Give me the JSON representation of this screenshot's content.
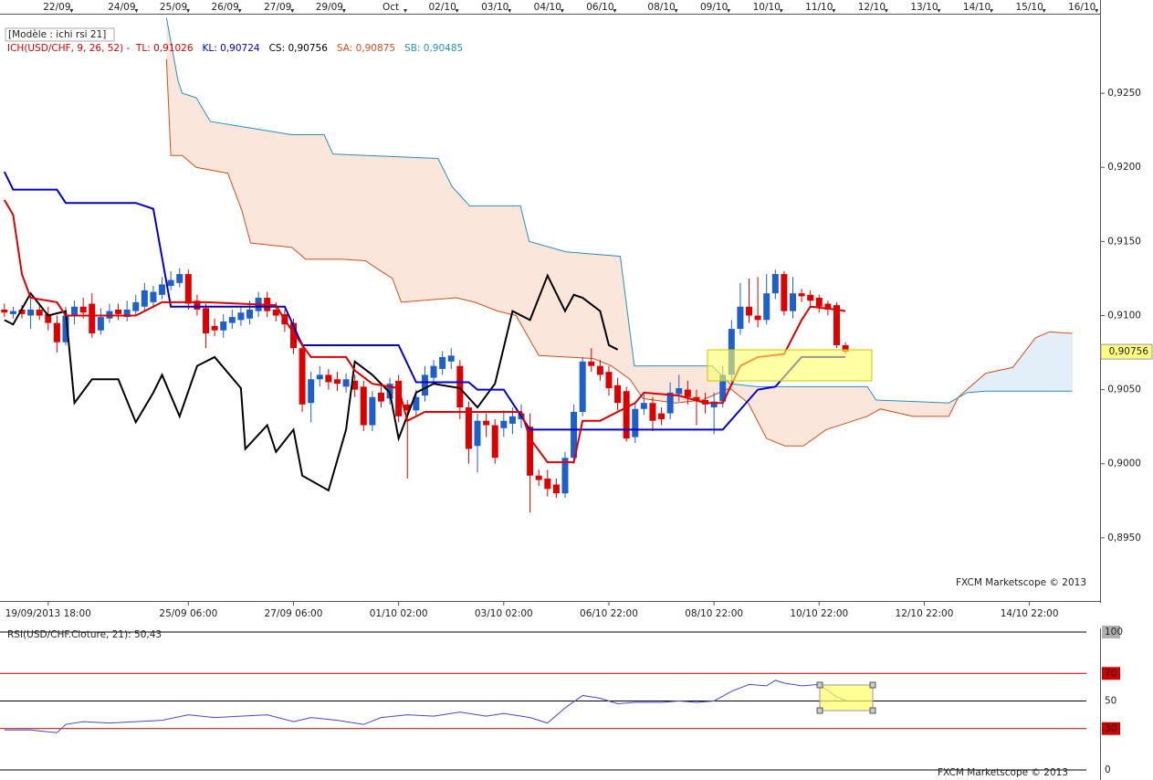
{
  "chart_data": {
    "type": "candlestick",
    "model_label": "[Modèle : ichi rsi 21]",
    "indicator_legend": [
      {
        "text": "ICH(USD/CHF, 9, 26, 52) -  TL: 0,91026",
        "color": "#dd0000"
      },
      {
        "text": "KL: 0,90724",
        "color": "#0000cc"
      },
      {
        "text": "CS: 0,90756",
        "color": "#000000"
      },
      {
        "text": "SA: 0,90875",
        "color": "#d05020"
      },
      {
        "text": "SB: 0,90485",
        "color": "#2a8fb8"
      }
    ],
    "watermark": "FXCM Marketscope © 2013",
    "xlim": [
      -0.5,
      123.5
    ],
    "ylim": [
      0.89154,
      0.93037
    ],
    "yticks": [
      {
        "value": 0.895,
        "label": "0,8950"
      },
      {
        "value": 0.9,
        "label": "0,9000"
      },
      {
        "value": 0.905,
        "label": "0,9050"
      },
      {
        "value": 0.91,
        "label": "0,9100"
      },
      {
        "value": 0.915,
        "label": "0,9150"
      },
      {
        "value": 0.92,
        "label": "0,9200"
      },
      {
        "value": 0.925,
        "label": "0,9250"
      }
    ],
    "xticks": [
      {
        "value": 5,
        "label": "19/09/2013 18:00"
      },
      {
        "value": 21,
        "label": "25/09 06:00"
      },
      {
        "value": 33,
        "label": "27/09 06:00"
      },
      {
        "value": 45,
        "label": "01/10 02:00"
      },
      {
        "value": 57,
        "label": "03/10 02:00"
      },
      {
        "value": 69,
        "label": "06/10 22:00"
      },
      {
        "value": 81,
        "label": "08/10 22:00"
      },
      {
        "value": 93,
        "label": "10/10 22:00"
      },
      {
        "value": 105,
        "label": "12/10 22:00"
      },
      {
        "value": 117,
        "label": "14/10 22:00"
      }
    ],
    "x2ticks": [
      {
        "value": 6,
        "label": "22/09"
      },
      {
        "value": 13.4,
        "label": "24/09"
      },
      {
        "value": 19.3,
        "label": "25/09"
      },
      {
        "value": 25.2,
        "label": "26/09"
      },
      {
        "value": 31.2,
        "label": "27/09"
      },
      {
        "value": 37.1,
        "label": "29/09"
      },
      {
        "value": 44.1,
        "label": "Oct"
      },
      {
        "value": 50,
        "label": "02/10"
      },
      {
        "value": 56,
        "label": "03/10"
      },
      {
        "value": 62,
        "label": "04/10"
      },
      {
        "value": 68,
        "label": "06/10"
      },
      {
        "value": 75,
        "label": "08/10"
      },
      {
        "value": 81,
        "label": "09/10"
      },
      {
        "value": 87,
        "label": "10/10"
      },
      {
        "value": 93,
        "label": "11/10"
      },
      {
        "value": 99,
        "label": "12/10"
      },
      {
        "value": 105,
        "label": "13/10"
      },
      {
        "value": 111,
        "label": "14/10"
      },
      {
        "value": 117,
        "label": "15/10"
      },
      {
        "value": 123,
        "label": "16/10"
      }
    ],
    "up_color": "#1f5fc8",
    "down_color": "#dd0000",
    "open": [
      0.9104,
      0.9101,
      0.9104,
      0.91,
      0.9104,
      0.9101,
      0.9095,
      0.9082,
      0.91,
      0.9106,
      0.9108,
      0.909,
      0.9098,
      0.9104,
      0.9099,
      0.9103,
      0.9106,
      0.9109,
      0.9114,
      0.912,
      0.9122,
      0.9128,
      0.911,
      0.9105,
      0.9093,
      0.909,
      0.9095,
      0.9097,
      0.9098,
      0.9103,
      0.9112,
      0.9104,
      0.9101,
      0.9095,
      0.9078,
      0.9041,
      0.9057,
      0.906,
      0.9057,
      0.9052,
      0.9056,
      0.9052,
      0.9026,
      0.9048,
      0.9044,
      0.9056,
      0.904,
      0.9036,
      0.9046,
      0.9058,
      0.9064,
      0.9069,
      0.9066,
      0.9038,
      0.9012,
      0.9029,
      0.9026,
      0.9024,
      0.9027,
      0.903,
      0.9025,
      0.8992,
      0.899,
      0.8986,
      0.898,
      0.9004,
      0.9035,
      0.9069,
      0.9066,
      0.9062,
      0.9053,
      0.9049,
      0.9018,
      0.9037,
      0.9041,
      0.9034,
      0.9034,
      0.9047,
      0.905,
      0.9045,
      0.9043,
      0.9038,
      0.9042,
      0.906,
      0.9091,
      0.9106,
      0.91,
      0.9097,
      0.9115,
      0.9128,
      0.9103,
      0.9115,
      0.9114,
      0.9112,
      0.9108,
      0.9107,
      0.908
    ],
    "high": [
      0.9108,
      0.9106,
      0.9107,
      0.9112,
      0.9108,
      0.9106,
      0.91,
      0.9106,
      0.911,
      0.9112,
      0.9115,
      0.9105,
      0.9108,
      0.9108,
      0.911,
      0.9114,
      0.9122,
      0.912,
      0.9126,
      0.913,
      0.9132,
      0.9131,
      0.9114,
      0.9108,
      0.9098,
      0.9101,
      0.9104,
      0.9106,
      0.911,
      0.9116,
      0.9116,
      0.9109,
      0.9104,
      0.9098,
      0.9082,
      0.9062,
      0.9066,
      0.9064,
      0.9062,
      0.9061,
      0.906,
      0.9056,
      0.9049,
      0.9052,
      0.9058,
      0.906,
      0.9043,
      0.905,
      0.9066,
      0.907,
      0.9076,
      0.9078,
      0.907,
      0.9042,
      0.9034,
      0.9034,
      0.903,
      0.9036,
      0.9038,
      0.904,
      0.9034,
      0.8996,
      0.8996,
      0.899,
      0.9008,
      0.904,
      0.9072,
      0.9078,
      0.907,
      0.9066,
      0.9058,
      0.9052,
      0.9041,
      0.9048,
      0.9045,
      0.9038,
      0.9055,
      0.906,
      0.9056,
      0.905,
      0.9048,
      0.9048,
      0.9066,
      0.9097,
      0.9122,
      0.9125,
      0.9126,
      0.9128,
      0.9131,
      0.913,
      0.9126,
      0.9118,
      0.9117,
      0.9114,
      0.911,
      0.9109,
      0.9082
    ],
    "low": [
      0.9099,
      0.9098,
      0.9098,
      0.9091,
      0.9097,
      0.909,
      0.9075,
      0.908,
      0.9094,
      0.9098,
      0.9085,
      0.9087,
      0.9095,
      0.9097,
      0.9096,
      0.91,
      0.9103,
      0.9105,
      0.9111,
      0.9117,
      0.9119,
      0.9104,
      0.91,
      0.9078,
      0.9086,
      0.9085,
      0.9091,
      0.9093,
      0.9094,
      0.9099,
      0.9099,
      0.9096,
      0.9089,
      0.9074,
      0.9035,
      0.9028,
      0.9052,
      0.905,
      0.9049,
      0.9048,
      0.9045,
      0.9022,
      0.9022,
      0.9038,
      0.904,
      0.9028,
      0.899,
      0.9032,
      0.9042,
      0.9054,
      0.906,
      0.9064,
      0.903,
      0.9,
      0.8994,
      0.9018,
      0.9,
      0.9018,
      0.902,
      0.9024,
      0.8967,
      0.8985,
      0.8978,
      0.8977,
      0.8977,
      0.9,
      0.9032,
      0.9062,
      0.9056,
      0.9046,
      0.9036,
      0.9015,
      0.9014,
      0.9033,
      0.9022,
      0.9026,
      0.903,
      0.9042,
      0.904,
      0.9026,
      0.9034,
      0.902,
      0.9038,
      0.9055,
      0.9087,
      0.9095,
      0.9092,
      0.9094,
      0.9111,
      0.91,
      0.9098,
      0.9109,
      0.9106,
      0.9102,
      0.91,
      0.9078,
      0.9074
    ],
    "close": [
      0.9102,
      0.9103,
      0.9101,
      0.9104,
      0.91,
      0.9095,
      0.9082,
      0.91,
      0.9106,
      0.9102,
      0.9088,
      0.9099,
      0.9103,
      0.9101,
      0.9104,
      0.9109,
      0.9117,
      0.9116,
      0.9121,
      0.9124,
      0.9128,
      0.9108,
      0.9104,
      0.9088,
      0.909,
      0.9096,
      0.9099,
      0.9102,
      0.9104,
      0.9112,
      0.9103,
      0.91,
      0.9094,
      0.9078,
      0.904,
      0.9057,
      0.906,
      0.9055,
      0.9054,
      0.9057,
      0.905,
      0.9026,
      0.9045,
      0.9042,
      0.9054,
      0.9032,
      0.9036,
      0.9045,
      0.906,
      0.9066,
      0.9072,
      0.9073,
      0.9038,
      0.901,
      0.9029,
      0.9026,
      0.9004,
      0.9029,
      0.9032,
      0.9034,
      0.8992,
      0.8989,
      0.8983,
      0.898,
      0.9004,
      0.9035,
      0.9069,
      0.9066,
      0.906,
      0.9051,
      0.9041,
      0.9017,
      0.9037,
      0.9041,
      0.9029,
      0.903,
      0.9048,
      0.9051,
      0.9045,
      0.9043,
      0.904,
      0.9042,
      0.906,
      0.9091,
      0.9106,
      0.91,
      0.9097,
      0.9115,
      0.9128,
      0.9103,
      0.9115,
      0.9113,
      0.911,
      0.9106,
      0.9104,
      0.908,
      0.90756
    ],
    "last_price": {
      "value": 0.90756,
      "label": "0,90756"
    },
    "cloud": {
      "fill_colors": [
        "#fbe6dc",
        "#e2eff8"
      ],
      "a": {
        "color": "#d05020",
        "x": [
          18.5,
          19,
          20.3,
          21.9,
          25.5,
          27.1,
          28.1,
          32.8,
          34.4,
          38.6,
          41.2,
          42.2,
          44.3,
          45.3,
          51.6,
          53.7,
          56.3,
          58.4,
          61,
          64.1,
          67.2,
          69.3,
          71.4,
          72.9,
          76.6,
          79.7,
          82.8,
          84.9,
          87,
          89.1,
          91.2,
          93.8,
          96.4,
          98.5,
          100,
          103.7,
          107.8,
          108.9,
          112,
          115.1,
          117.7,
          119.3,
          121.9
        ],
        "values": [
          0.9273,
          0.9208,
          0.9208,
          0.92,
          0.9196,
          0.9171,
          0.9149,
          0.9146,
          0.9138,
          0.9138,
          0.9137,
          0.9133,
          0.9125,
          0.9109,
          0.9112,
          0.9109,
          0.9103,
          0.91,
          0.9073,
          0.9072,
          0.9071,
          0.9066,
          0.9057,
          0.9044,
          0.9041,
          0.9043,
          0.9051,
          0.9041,
          0.9017,
          0.9012,
          0.9012,
          0.9023,
          0.9028,
          0.9032,
          0.9037,
          0.9032,
          0.9032,
          0.9045,
          0.9061,
          0.9065,
          0.9085,
          0.9089,
          0.9088
        ]
      },
      "b": {
        "color": "#2a8fb8",
        "x": [
          18.5,
          19.8,
          20.3,
          21.9,
          23.5,
          32.8,
          36.5,
          37.5,
          49.5,
          51.1,
          53.1,
          58.9,
          59.9,
          64.1,
          70.3,
          71.9,
          80.8,
          82.8,
          86,
          98.5,
          99.5,
          107.8,
          109.9,
          112,
          121.9
        ],
        "values": [
          0.9301,
          0.9259,
          0.925,
          0.9247,
          0.9231,
          0.9222,
          0.9222,
          0.9209,
          0.9206,
          0.9187,
          0.9174,
          0.9174,
          0.915,
          0.9143,
          0.914,
          0.9066,
          0.9066,
          0.9054,
          0.9052,
          0.9052,
          0.9043,
          0.9041,
          0.9048,
          0.9049,
          0.9049
        ]
      }
    },
    "lines": [
      {
        "color": "#000000",
        "x": [
          0,
          1,
          3,
          5,
          7,
          8,
          10,
          13,
          15,
          17,
          18,
          20,
          22,
          24,
          27,
          27.5,
          30,
          31,
          33,
          34,
          37,
          39,
          40,
          42,
          44,
          45,
          47,
          49,
          52,
          54,
          56,
          58,
          60,
          62,
          64,
          65,
          66,
          68,
          69,
          70
        ],
        "values": [
          0.9097,
          0.9094,
          0.9115,
          0.91,
          0.9103,
          0.9041,
          0.9057,
          0.9057,
          0.9028,
          0.9048,
          0.906,
          0.9032,
          0.9066,
          0.9072,
          0.9051,
          0.901,
          0.9026,
          0.9008,
          0.9023,
          0.8992,
          0.8982,
          0.9023,
          0.9069,
          0.906,
          0.9048,
          0.9017,
          0.9048,
          0.9054,
          0.9051,
          0.9038,
          0.9054,
          0.9103,
          0.9097,
          0.9127,
          0.9103,
          0.9114,
          0.9112,
          0.9103,
          0.908,
          0.9077
        ]
      },
      {
        "color": "#0000cc",
        "x": [
          0,
          1,
          6,
          7,
          15,
          17,
          19,
          32,
          34,
          45,
          47,
          53,
          54,
          57,
          58,
          60,
          66,
          82,
          86,
          88,
          91,
          96
        ],
        "values": [
          0.9197,
          0.9185,
          0.9185,
          0.9176,
          0.9176,
          0.9172,
          0.9106,
          0.9106,
          0.908,
          0.908,
          0.9055,
          0.9055,
          0.905,
          0.905,
          0.9041,
          0.9023,
          0.9023,
          0.9023,
          0.905,
          0.9052,
          0.9072,
          0.9072
        ]
      },
      {
        "color": "#dd0000",
        "x": [
          0,
          1,
          2,
          3,
          6,
          7,
          15,
          18,
          20,
          23,
          31,
          32,
          34,
          35,
          39,
          40,
          42,
          45,
          46,
          48,
          59,
          60,
          62,
          65,
          66,
          68,
          72,
          73,
          77,
          80,
          82,
          84,
          86,
          89,
          91,
          92,
          95,
          96
        ],
        "values": [
          0.9178,
          0.9168,
          0.9128,
          0.9112,
          0.9109,
          0.91,
          0.91,
          0.9109,
          0.9109,
          0.9109,
          0.9107,
          0.9097,
          0.908,
          0.9072,
          0.9072,
          0.9063,
          0.9054,
          0.9051,
          0.9029,
          0.9035,
          0.9035,
          0.9017,
          0.9001,
          0.9001,
          0.9029,
          0.9029,
          0.9041,
          0.9048,
          0.9046,
          0.9041,
          0.9041,
          0.9066,
          0.9072,
          0.9074,
          0.9097,
          0.9106,
          0.9104,
          0.9103
        ]
      }
    ],
    "rsi": {
      "label": "RSI(USD/CHF.Cloture, 21): 50,43",
      "color": "#4848c8",
      "ylim": [
        0,
        100
      ],
      "yticks": [
        0,
        30,
        50,
        70,
        100
      ],
      "ytick_colors": [
        "#000000",
        "#cc0000",
        "#000000",
        "#cc0000",
        "#000000"
      ],
      "x": [
        0,
        3,
        6,
        7,
        9,
        12,
        15,
        18,
        21,
        24,
        27,
        30,
        33,
        35,
        38,
        41,
        43,
        46,
        49,
        52,
        55,
        57,
        60,
        62,
        64,
        66,
        68,
        70,
        72,
        75,
        77,
        79,
        81,
        83,
        85,
        87,
        88,
        89,
        91,
        93,
        95,
        96
      ],
      "values": [
        29,
        29,
        27,
        33,
        35,
        34,
        35,
        36,
        40,
        38,
        39,
        40,
        35,
        38,
        36,
        33,
        38,
        40,
        39,
        42,
        39,
        41,
        38,
        34,
        45,
        54,
        52,
        48,
        49,
        49,
        50,
        49,
        50,
        57,
        62,
        61,
        65,
        63,
        61,
        62,
        53,
        50.43
      ]
    }
  }
}
